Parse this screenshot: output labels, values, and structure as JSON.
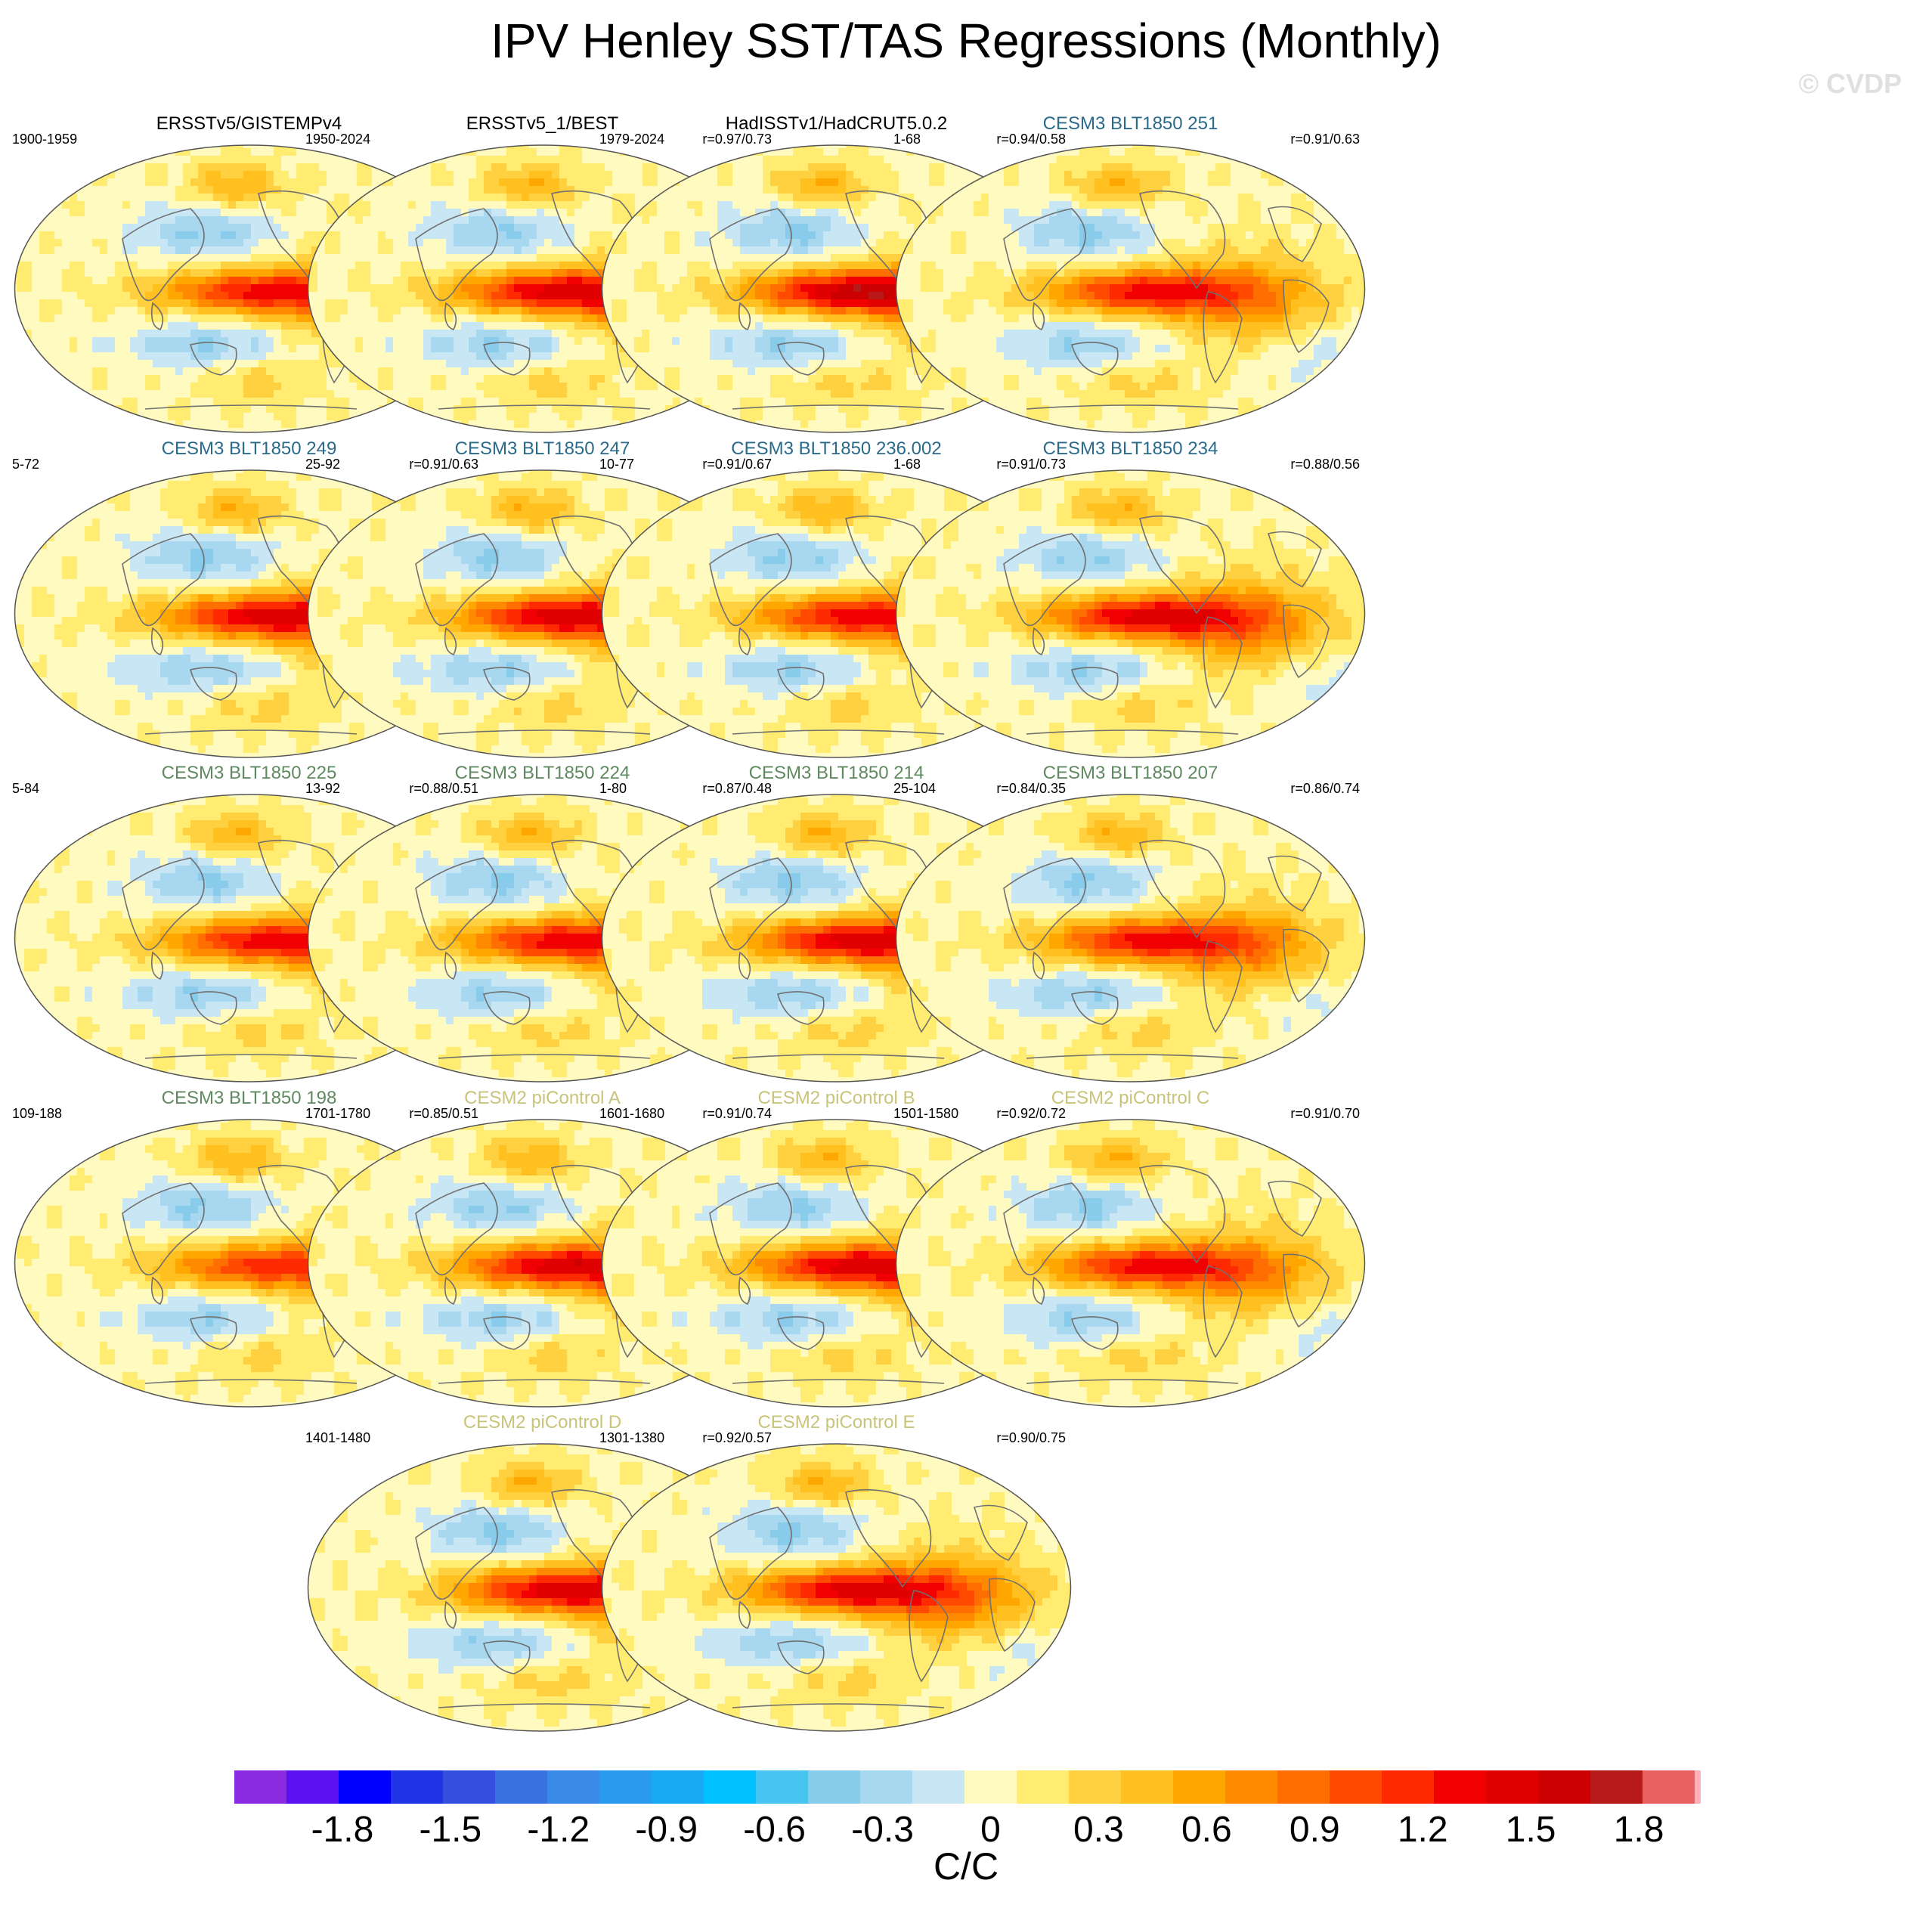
{
  "figure": {
    "title": "IPV Henley SST/TAS Regressions (Monthly)",
    "watermark": "© CVDP"
  },
  "colors": {
    "obs_title": "#000000",
    "cesm3_a": "#2a6a8a",
    "cesm3_b": "#5f8a60",
    "cesm2": "#c8c47a",
    "coastline": "#707070"
  },
  "chart_data": {
    "type": "heatmap",
    "variable": "SST/TAS regression on IPV Henley index",
    "units_label": "C/C",
    "colorbar": {
      "levels": [
        -2.1,
        -1.95,
        -1.8,
        -1.65,
        -1.5,
        -1.35,
        -1.2,
        -1.05,
        -0.9,
        -0.75,
        -0.6,
        -0.45,
        -0.3,
        -0.15,
        0,
        0.15,
        0.3,
        0.45,
        0.6,
        0.75,
        0.9,
        1.05,
        1.2,
        1.35,
        1.5,
        1.65,
        1.8,
        1.95,
        2.1
      ],
      "colors": [
        "#8a2be2",
        "#5a10f0",
        "#0000ff",
        "#1f35e6",
        "#3550e0",
        "#3a70e0",
        "#3a8ae8",
        "#2a9af0",
        "#18aaf5",
        "#00c0ff",
        "#48c4f0",
        "#88cbeb",
        "#a8d8f0",
        "#c8e6f4",
        "#fffac0",
        "#ffec70",
        "#ffd040",
        "#ffc020",
        "#ffa600",
        "#ff8a00",
        "#ff6e00",
        "#ff4a00",
        "#ff2a00",
        "#f00000",
        "#e00000",
        "#cc0000",
        "#b81a1a",
        "#e86060",
        "#ffb0b8"
      ],
      "tick_labels": [
        "-1.8",
        "-1.5",
        "-1.2",
        "-0.9",
        "-0.6",
        "-0.3",
        "0",
        "0.3",
        "0.6",
        "0.9",
        "1.2",
        "1.5",
        "1.8"
      ],
      "tick_values": [
        -1.8,
        -1.5,
        -1.2,
        -0.9,
        -0.6,
        -0.3,
        0,
        0.3,
        0.6,
        0.9,
        1.2,
        1.5,
        1.8
      ]
    },
    "panels": [
      {
        "title": "ERSSTv5/GISTEMPv4",
        "years": "1900-1959",
        "corr": "",
        "group": "obs",
        "peak": 1.2
      },
      {
        "title": "ERSSTv5_1/BEST",
        "years": "1950-2024",
        "corr": "r=0.97/0.73",
        "group": "obs",
        "peak": 1.35
      },
      {
        "title": "HadISSTv1/HadCRUT5.0.2",
        "years": "1979-2024",
        "corr": "r=0.94/0.58",
        "group": "obs",
        "peak": 1.5
      },
      {
        "title": "CESM3 BLT1850 251",
        "years": "1-68",
        "corr": "r=0.91/0.63",
        "group": "cesm3_a",
        "peak": 1.2
      },
      {
        "title": "CESM3 BLT1850 249",
        "years": "5-72",
        "corr": "r=0.91/0.63",
        "group": "cesm3_a",
        "peak": 1.35
      },
      {
        "title": "CESM3 BLT1850 247",
        "years": "25-92",
        "corr": "r=0.91/0.67",
        "group": "cesm3_a",
        "peak": 1.35
      },
      {
        "title": "CESM3 BLT1850 236.002",
        "years": "10-77",
        "corr": "r=0.91/0.73",
        "group": "cesm3_a",
        "peak": 1.2
      },
      {
        "title": "CESM3 BLT1850 234",
        "years": "1-68",
        "corr": "r=0.88/0.56",
        "group": "cesm3_a",
        "peak": 1.35
      },
      {
        "title": "CESM3 BLT1850 225",
        "years": "5-84",
        "corr": "r=0.88/0.51",
        "group": "cesm3_b",
        "peak": 1.2
      },
      {
        "title": "CESM3 BLT1850 224",
        "years": "13-92",
        "corr": "r=0.87/0.48",
        "group": "cesm3_b",
        "peak": 1.2
      },
      {
        "title": "CESM3 BLT1850 214",
        "years": "1-80",
        "corr": "r=0.84/0.35",
        "group": "cesm3_b",
        "peak": 1.35
      },
      {
        "title": "CESM3 BLT1850 207",
        "years": "25-104",
        "corr": "r=0.86/0.74",
        "group": "cesm3_b",
        "peak": 1.2
      },
      {
        "title": "CESM3 BLT1850 198",
        "years": "109-188",
        "corr": "r=0.85/0.51",
        "group": "cesm3_b",
        "peak": 1.05
      },
      {
        "title": "CESM2 piControl A",
        "years": "1701-1780",
        "corr": "r=0.91/0.74",
        "group": "cesm2",
        "peak": 1.35
      },
      {
        "title": "CESM2 piControl B",
        "years": "1601-1680",
        "corr": "r=0.92/0.72",
        "group": "cesm2",
        "peak": 1.35
      },
      {
        "title": "CESM2 piControl C",
        "years": "1501-1580",
        "corr": "r=0.91/0.70",
        "group": "cesm2",
        "peak": 1.2
      },
      {
        "title": "CESM2 piControl D",
        "years": "1401-1480",
        "corr": "r=0.92/0.57",
        "group": "cesm2",
        "peak": 1.35
      },
      {
        "title": "CESM2 piControl E",
        "years": "1301-1380",
        "corr": "r=0.90/0.75",
        "group": "cesm2",
        "peak": 1.35
      }
    ]
  }
}
